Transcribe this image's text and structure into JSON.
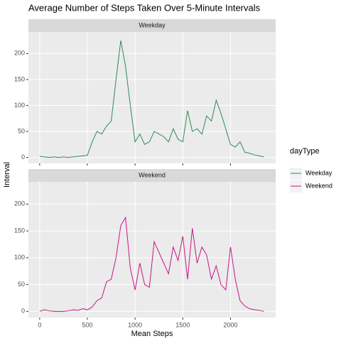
{
  "chart_data": {
    "type": "line",
    "facet": true,
    "title": "Average Number of Steps Taken Over 5-Minute Intervals",
    "x_label": "Mean Steps",
    "y_label": "Interval",
    "legend_title": "dayType",
    "x": [
      0,
      50,
      100,
      150,
      200,
      250,
      300,
      350,
      400,
      450,
      500,
      550,
      600,
      650,
      700,
      750,
      800,
      850,
      900,
      950,
      1000,
      1050,
      1100,
      1150,
      1200,
      1250,
      1300,
      1350,
      1400,
      1450,
      1500,
      1550,
      1600,
      1650,
      1700,
      1750,
      1800,
      1850,
      1900,
      1950,
      2000,
      2050,
      2100,
      2150,
      2200,
      2250,
      2300,
      2350
    ],
    "series": [
      {
        "name": "Weekday",
        "color": "#2e8b57",
        "values": [
          2,
          1,
          0,
          1,
          0,
          1,
          0,
          1,
          2,
          3,
          4,
          30,
          50,
          45,
          60,
          70,
          150,
          225,
          175,
          100,
          30,
          45,
          25,
          30,
          50,
          45,
          40,
          30,
          55,
          35,
          30,
          90,
          50,
          55,
          45,
          80,
          70,
          110,
          85,
          55,
          25,
          20,
          30,
          10,
          8,
          5,
          3,
          1
        ]
      },
      {
        "name": "Weekend",
        "color": "#c71585",
        "values": [
          0,
          3,
          1,
          0,
          0,
          0,
          1,
          3,
          2,
          5,
          3,
          8,
          20,
          25,
          55,
          60,
          100,
          160,
          175,
          80,
          40,
          90,
          50,
          45,
          130,
          110,
          90,
          70,
          120,
          95,
          140,
          60,
          155,
          90,
          120,
          105,
          60,
          85,
          50,
          40,
          120,
          60,
          20,
          10,
          5,
          3,
          2,
          0
        ]
      }
    ],
    "xlim": [
      -118,
      2473
    ],
    "xticks": [
      0,
      500,
      1000,
      1500,
      2000
    ],
    "ylim": [
      -11.5,
      241.5
    ],
    "yticks": [
      0,
      50,
      100,
      150,
      200
    ],
    "grid": true,
    "legend": "right"
  }
}
